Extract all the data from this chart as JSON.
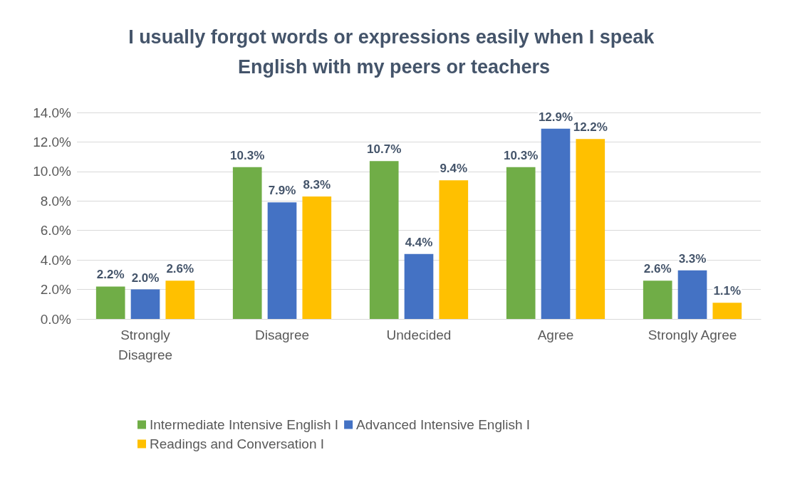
{
  "chart_data": {
    "type": "bar",
    "title": "I usually forgot words or expressions easily when I speak English with my peers or teachers",
    "categories": [
      "Strongly\nDisagree",
      "Disagree",
      "Undecided",
      "Agree",
      "Strongly Agree"
    ],
    "series": [
      {
        "name": "Intermediate Intensive English I",
        "color": "#70ad47",
        "values": [
          2.2,
          10.3,
          10.7,
          10.3,
          2.6
        ],
        "value_labels": [
          "2.2%",
          "10.3%",
          "10.7%",
          "10.3%",
          "2.6%"
        ]
      },
      {
        "name": "Advanced Intensive English I",
        "color": "#4472c4",
        "values": [
          2.0,
          7.9,
          4.4,
          12.9,
          3.3
        ],
        "value_labels": [
          "2.0%",
          "7.9%",
          "4.4%",
          "12.9%",
          "3.3%"
        ]
      },
      {
        "name": "Readings and Conversation I",
        "color": "#ffc000",
        "values": [
          2.6,
          8.3,
          9.4,
          12.2,
          1.1
        ],
        "value_labels": [
          "2.6%",
          "8.3%",
          "9.4%",
          "12.2%",
          "1.1%"
        ]
      }
    ],
    "ylim": [
      0,
      14
    ],
    "yticks": [
      {
        "value": 0,
        "label": "0.0%"
      },
      {
        "value": 2,
        "label": "2.0%"
      },
      {
        "value": 4,
        "label": "4.0%"
      },
      {
        "value": 6,
        "label": "6.0%"
      },
      {
        "value": 8,
        "label": "8.0%"
      },
      {
        "value": 10,
        "label": "10.0%"
      },
      {
        "value": 12,
        "label": "12.0%"
      },
      {
        "value": 14,
        "label": "14.0%"
      }
    ],
    "grid": "y",
    "legend": "bottom"
  }
}
